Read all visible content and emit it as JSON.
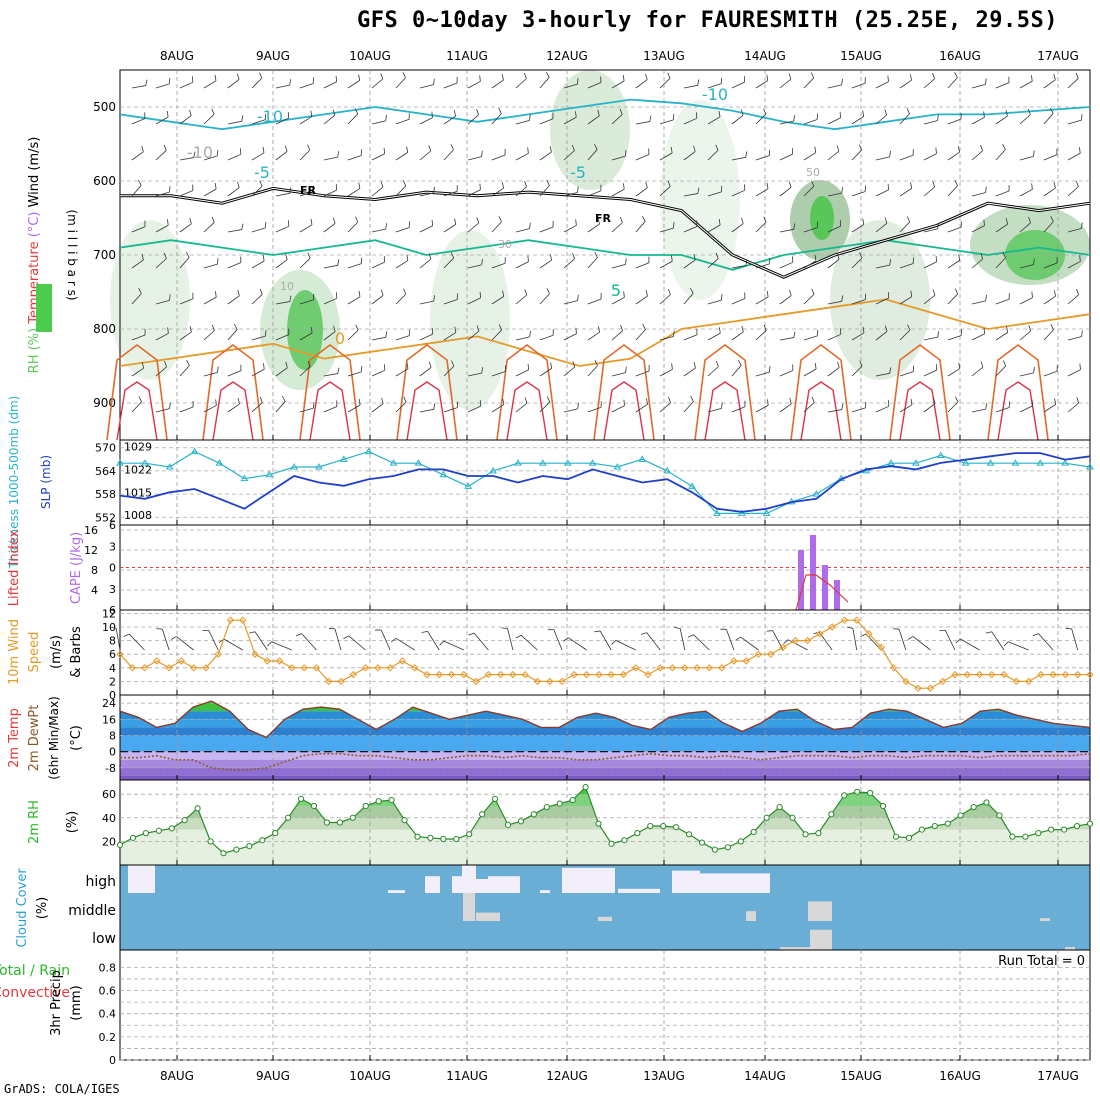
{
  "title": "GFS 0~10day 3-hourly for FAURESMITH (25.25E, 29.5S)",
  "footer": "GrADS: COLA/IGES",
  "dates": [
    "8AUG",
    "9AUG",
    "10AUG",
    "11AUG",
    "12AUG",
    "13AUG",
    "14AUG",
    "15AUG",
    "16AUG",
    "17AUG"
  ],
  "colors": {
    "dewpt": "#8a5a2a",
    "rh": "#6dd66d",
    "cyan": "#29b3c8",
    "blue": "#1f3fc8",
    "orange": "#e59a2a",
    "purple": "#b06be8",
    "red": "#e03a3a",
    "cloud": "#6aaed6",
    "cold": "#a889e0",
    "warm": "#3a8de0"
  },
  "chart_data": [
    {
      "type": "line",
      "id": "upper-air",
      "ylabel_parts": [
        "RH (%)",
        "Temperature",
        "(°C)",
        "Wind (m/s)"
      ],
      "ylabel_side": "(m i l l i b a r s)",
      "yticks": [
        500,
        600,
        700,
        800,
        900
      ],
      "ylim": [
        950,
        450
      ],
      "isotherm_labels": [
        "-10",
        "-10",
        "-5",
        "-5",
        "-10",
        "5",
        "0",
        "10",
        "30",
        "50",
        "FR",
        "FR"
      ],
      "series": [
        {
          "name": "0C isotherm",
          "values": [
            850,
            840,
            830,
            820,
            840,
            830,
            820,
            810,
            830,
            850,
            840,
            800,
            790,
            780,
            770,
            760,
            780,
            800,
            790,
            780
          ]
        },
        {
          "name": "-5C",
          "values": [
            690,
            680,
            690,
            700,
            690,
            680,
            700,
            690,
            680,
            690,
            700,
            700,
            720,
            700,
            690,
            680,
            690,
            700,
            690,
            700
          ]
        },
        {
          "name": "-10C",
          "values": [
            510,
            520,
            530,
            520,
            510,
            500,
            510,
            520,
            510,
            500,
            490,
            495,
            505,
            520,
            530,
            520,
            510,
            510,
            505,
            500
          ]
        },
        {
          "name": "FR level",
          "values": [
            620,
            620,
            630,
            610,
            620,
            625,
            615,
            620,
            615,
            620,
            625,
            640,
            700,
            730,
            700,
            680,
            660,
            630,
            640,
            630
          ]
        }
      ]
    },
    {
      "type": "line",
      "id": "thickness-slp",
      "ylabel_left": "Thickness 1000-500mb (dm)",
      "ylabel_right": "SLP (mb)",
      "yticks_left": [
        570,
        564,
        558,
        552
      ],
      "yticks_right": [
        1029,
        1022,
        1015,
        1008
      ],
      "series": [
        {
          "name": "Thickness",
          "values": [
            566,
            566,
            565,
            569,
            566,
            562,
            563,
            565,
            565,
            567,
            569,
            566,
            566,
            563,
            560,
            564,
            566,
            566,
            566,
            566,
            565,
            567,
            564,
            560,
            553,
            553,
            553,
            556,
            558,
            562,
            564,
            566,
            566,
            568,
            566,
            566,
            566,
            566,
            566,
            565
          ]
        },
        {
          "name": "SLP",
          "values": [
            1014,
            1013,
            1015,
            1016,
            1013,
            1010,
            1015,
            1020,
            1018,
            1017,
            1019,
            1020,
            1022,
            1022,
            1020,
            1020,
            1018,
            1020,
            1019,
            1022,
            1020,
            1018,
            1019,
            1015,
            1010,
            1009,
            1010,
            1012,
            1013,
            1019,
            1022,
            1023,
            1022,
            1024,
            1025,
            1026,
            1027,
            1027,
            1025,
            1026
          ]
        }
      ]
    },
    {
      "type": "bar",
      "id": "cape-li",
      "ylabel_left": "Lifted Index",
      "ylabel_right": "CAPE (J/kg)",
      "yticks_li": [
        -6,
        -3,
        0,
        3,
        6
      ],
      "yticks_cape": [
        16,
        12,
        8,
        4
      ],
      "series": [
        {
          "name": "CAPE",
          "values": [
            12,
            15,
            9,
            6
          ]
        },
        {
          "name": "LI",
          "values": [
            0,
            0,
            -5,
            0
          ]
        }
      ]
    },
    {
      "type": "line",
      "id": "wind10m",
      "ylabel_parts": [
        "10m Wind",
        "Speed",
        "(m/s)",
        "& Barbs"
      ],
      "yticks": [
        0,
        2,
        4,
        6,
        8,
        10,
        12
      ],
      "ylim": [
        0,
        12
      ],
      "series": [
        {
          "name": "Wind Speed",
          "values": [
            6,
            4,
            4,
            5,
            4,
            5,
            4,
            4,
            6,
            11,
            11,
            6,
            5,
            5,
            4,
            4,
            4,
            2,
            2,
            3,
            4,
            4,
            4,
            5,
            4,
            3,
            3,
            3,
            3,
            2,
            3,
            3,
            3,
            3,
            2,
            2,
            2,
            3,
            3,
            3,
            3,
            3,
            4,
            3,
            4,
            4,
            4,
            4,
            4,
            4,
            5,
            5,
            6,
            6,
            7,
            8,
            8,
            9,
            10,
            11,
            11,
            9,
            7,
            4,
            2,
            1,
            1,
            2,
            3,
            3,
            3,
            3,
            3,
            2,
            2,
            3,
            3,
            3,
            3,
            3
          ]
        }
      ]
    },
    {
      "type": "area",
      "id": "temp-dewpt",
      "ylabel_parts": [
        "2m Temp",
        "2m DewPt",
        "(6hr Min/Max)",
        "(°C)"
      ],
      "yticks": [
        24,
        16,
        8,
        0,
        -8
      ],
      "series": [
        {
          "name": "2m Temp",
          "values": [
            20,
            17,
            12,
            14,
            22,
            25,
            20,
            11,
            7,
            16,
            21,
            22,
            21,
            16,
            11,
            16,
            22,
            19,
            16,
            18,
            20,
            18,
            16,
            12,
            12,
            17,
            19,
            17,
            13,
            11,
            17,
            19,
            20,
            14,
            10,
            14,
            20,
            21,
            15,
            11,
            12,
            19,
            21,
            20,
            16,
            12,
            14,
            20,
            21,
            18,
            16,
            14,
            13,
            12
          ]
        },
        {
          "name": "2m DewPt",
          "values": [
            -3,
            -3,
            -2,
            -4,
            -4,
            -8,
            -9,
            -9,
            -8,
            -5,
            -2,
            -1,
            -1,
            -2,
            -2,
            -3,
            -4,
            -4,
            -3,
            -2,
            -2,
            -3,
            -2,
            -3,
            -3,
            -4,
            -4,
            -3,
            -2,
            -1,
            -2,
            -2,
            -3,
            -2,
            -3,
            -4,
            -3,
            -2,
            -2,
            -2,
            -3,
            -2,
            -2,
            -3,
            -2,
            -2,
            -2,
            -3,
            -2,
            -2,
            -2,
            -2,
            -2,
            -1
          ]
        }
      ]
    },
    {
      "type": "area",
      "id": "rh2m",
      "ylabel_parts": [
        "2m RH",
        "(%)"
      ],
      "yticks": [
        20,
        40,
        60
      ],
      "series": [
        {
          "name": "2m RH",
          "values": [
            17,
            23,
            27,
            29,
            31,
            38,
            48,
            20,
            10,
            13,
            16,
            21,
            27,
            40,
            56,
            50,
            36,
            36,
            40,
            50,
            54,
            55,
            38,
            24,
            23,
            22,
            22,
            26,
            43,
            56,
            34,
            37,
            43,
            49,
            52,
            55,
            66,
            35,
            18,
            21,
            27,
            33,
            33,
            32,
            26,
            19,
            13,
            15,
            20,
            28,
            40,
            49,
            40,
            26,
            27,
            43,
            59,
            62,
            61,
            50,
            24,
            23,
            30,
            33,
            35,
            42,
            49,
            53,
            42,
            24,
            24,
            27,
            30,
            30,
            33,
            35
          ]
        }
      ]
    },
    {
      "type": "heatmap",
      "id": "cloud",
      "ylabel_parts": [
        "Cloud Cover",
        "(%)"
      ],
      "rows": [
        "high",
        "middle",
        "low"
      ]
    },
    {
      "type": "bar",
      "id": "precip",
      "ylabel_parts": [
        "Total / Rain",
        "Convective",
        "3hr Precip",
        "(mm)"
      ],
      "yticks": [
        "0",
        "0.2",
        "0.4",
        "0.6",
        "0.8"
      ],
      "run_total": "Run Total = 0"
    }
  ]
}
